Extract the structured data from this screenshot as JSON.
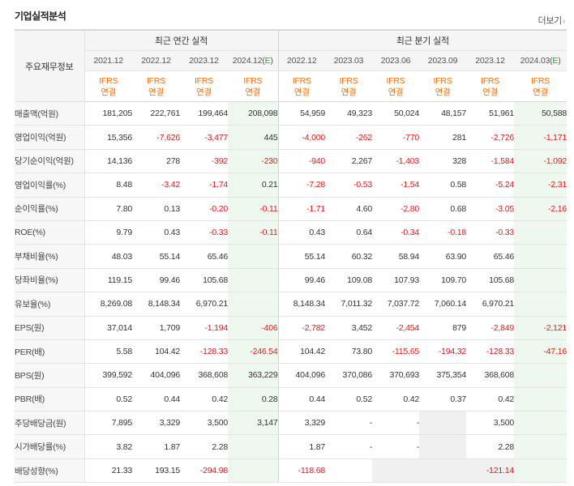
{
  "title": "기업실적분석",
  "more_link": "더보기",
  "table": {
    "row_header": "주요재무정보",
    "group_annual": "최근 연간 실적",
    "group_quarter": "최근 분기 실적",
    "annual_periods": [
      "2021.12",
      "2022.12",
      "2023.12",
      "2024.12"
    ],
    "quarter_periods": [
      "2022.12",
      "2023.03",
      "2023.06",
      "2023.09",
      "2023.12",
      "2024.03"
    ],
    "estimate_marker": "E",
    "ifrs_label": "IFRS",
    "ifrs_basis": "연결",
    "rows": [
      {
        "label": "매출액(억원)",
        "values": [
          "181,205",
          "222,761",
          "199,464",
          "208,098",
          "54,959",
          "49,323",
          "50,024",
          "48,157",
          "51,961",
          "50,588"
        ]
      },
      {
        "label": "영업이익(억원)",
        "values": [
          "15,356",
          "-7,626",
          "-3,477",
          "445",
          "-4,000",
          "-262",
          "-770",
          "281",
          "-2,726",
          "-1,171"
        ]
      },
      {
        "label": "당기순이익(억원)",
        "values": [
          "14,136",
          "278",
          "-392",
          "-230",
          "-940",
          "2,267",
          "-1,403",
          "328",
          "-1,584",
          "-1,092"
        ]
      },
      {
        "label": "영업이익률(%)",
        "values": [
          "8.48",
          "-3.42",
          "-1.74",
          "0.21",
          "-7.28",
          "-0.53",
          "-1.54",
          "0.58",
          "-5.24",
          "-2.31"
        ]
      },
      {
        "label": "순이익률(%)",
        "values": [
          "7.80",
          "0.13",
          "-0.20",
          "-0.11",
          "-1.71",
          "4.60",
          "-2.80",
          "0.68",
          "-3.05",
          "-2.16"
        ]
      },
      {
        "label": "ROE(%)",
        "values": [
          "9.79",
          "0.43",
          "-0.33",
          "-0.11",
          "0.43",
          "0.64",
          "-0.34",
          "-0.18",
          "-0.33",
          ""
        ]
      },
      {
        "label": "부채비율(%)",
        "values": [
          "48.03",
          "55.14",
          "65.46",
          "",
          "55.14",
          "60.32",
          "58.94",
          "63.90",
          "65.46",
          ""
        ]
      },
      {
        "label": "당좌비율(%)",
        "values": [
          "119.15",
          "99.46",
          "105.68",
          "",
          "99.46",
          "109.08",
          "107.93",
          "109.70",
          "105.68",
          ""
        ]
      },
      {
        "label": "유보율(%)",
        "values": [
          "8,269.08",
          "8,148.34",
          "6,970.21",
          "",
          "8,148.34",
          "7,011.32",
          "7,037.72",
          "7,060.14",
          "6,970.21",
          ""
        ]
      },
      {
        "label": "EPS(원)",
        "values": [
          "37,014",
          "1,709",
          "-1,194",
          "-406",
          "-2,782",
          "3,452",
          "-2,454",
          "879",
          "-2,849",
          "-2,121"
        ]
      },
      {
        "label": "PER(배)",
        "values": [
          "5.58",
          "104.42",
          "-128.33",
          "-246.54",
          "104.42",
          "73.80",
          "-115.65",
          "-194.32",
          "-128.33",
          "-47.16"
        ]
      },
      {
        "label": "BPS(원)",
        "values": [
          "399,592",
          "404,096",
          "368,608",
          "363,229",
          "404,096",
          "370,086",
          "370,693",
          "375,354",
          "368,608",
          ""
        ]
      },
      {
        "label": "PBR(배)",
        "values": [
          "0.52",
          "0.44",
          "0.42",
          "0.28",
          "0.44",
          "0.52",
          "0.42",
          "0.37",
          "0.42",
          ""
        ]
      },
      {
        "label": "주당배당금(원)",
        "values": [
          "7,895",
          "3,329",
          "3,500",
          "3,147",
          "3,329",
          "-",
          "-",
          "",
          "3,500",
          ""
        ]
      },
      {
        "label": "시가배당률(%)",
        "values": [
          "3.82",
          "1.87",
          "2.28",
          "",
          "1.87",
          "-",
          "-",
          "",
          "2.28",
          ""
        ]
      },
      {
        "label": "배당성향(%)",
        "values": [
          "21.33",
          "193.15",
          "-294.98",
          "",
          "-118.68",
          "",
          "",
          "",
          "-121.14",
          ""
        ]
      }
    ]
  },
  "colors": {
    "negative": "#e31a1a",
    "ifrs": "#ff6a00",
    "estimate_bg": "#eef8ee",
    "estimate_marker": "#3a9a3a"
  }
}
